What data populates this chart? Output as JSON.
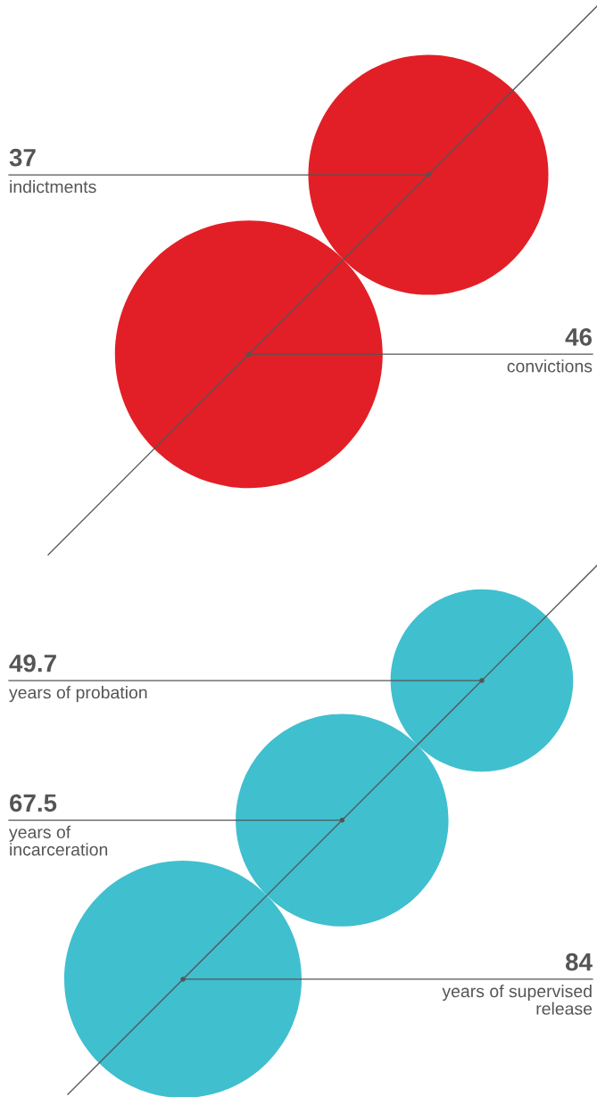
{
  "chart_data": [
    {
      "type": "other",
      "categories": [
        "indictments",
        "convictions"
      ],
      "values": [
        37,
        46
      ],
      "color": "#e21f26",
      "data_labels": true
    },
    {
      "type": "other",
      "categories": [
        "years of probation",
        "years of\nincarceration",
        "years of supervised\nrelease"
      ],
      "values": [
        49.7,
        67.5,
        84
      ],
      "color": "#40bfcf",
      "data_labels": true
    }
  ]
}
